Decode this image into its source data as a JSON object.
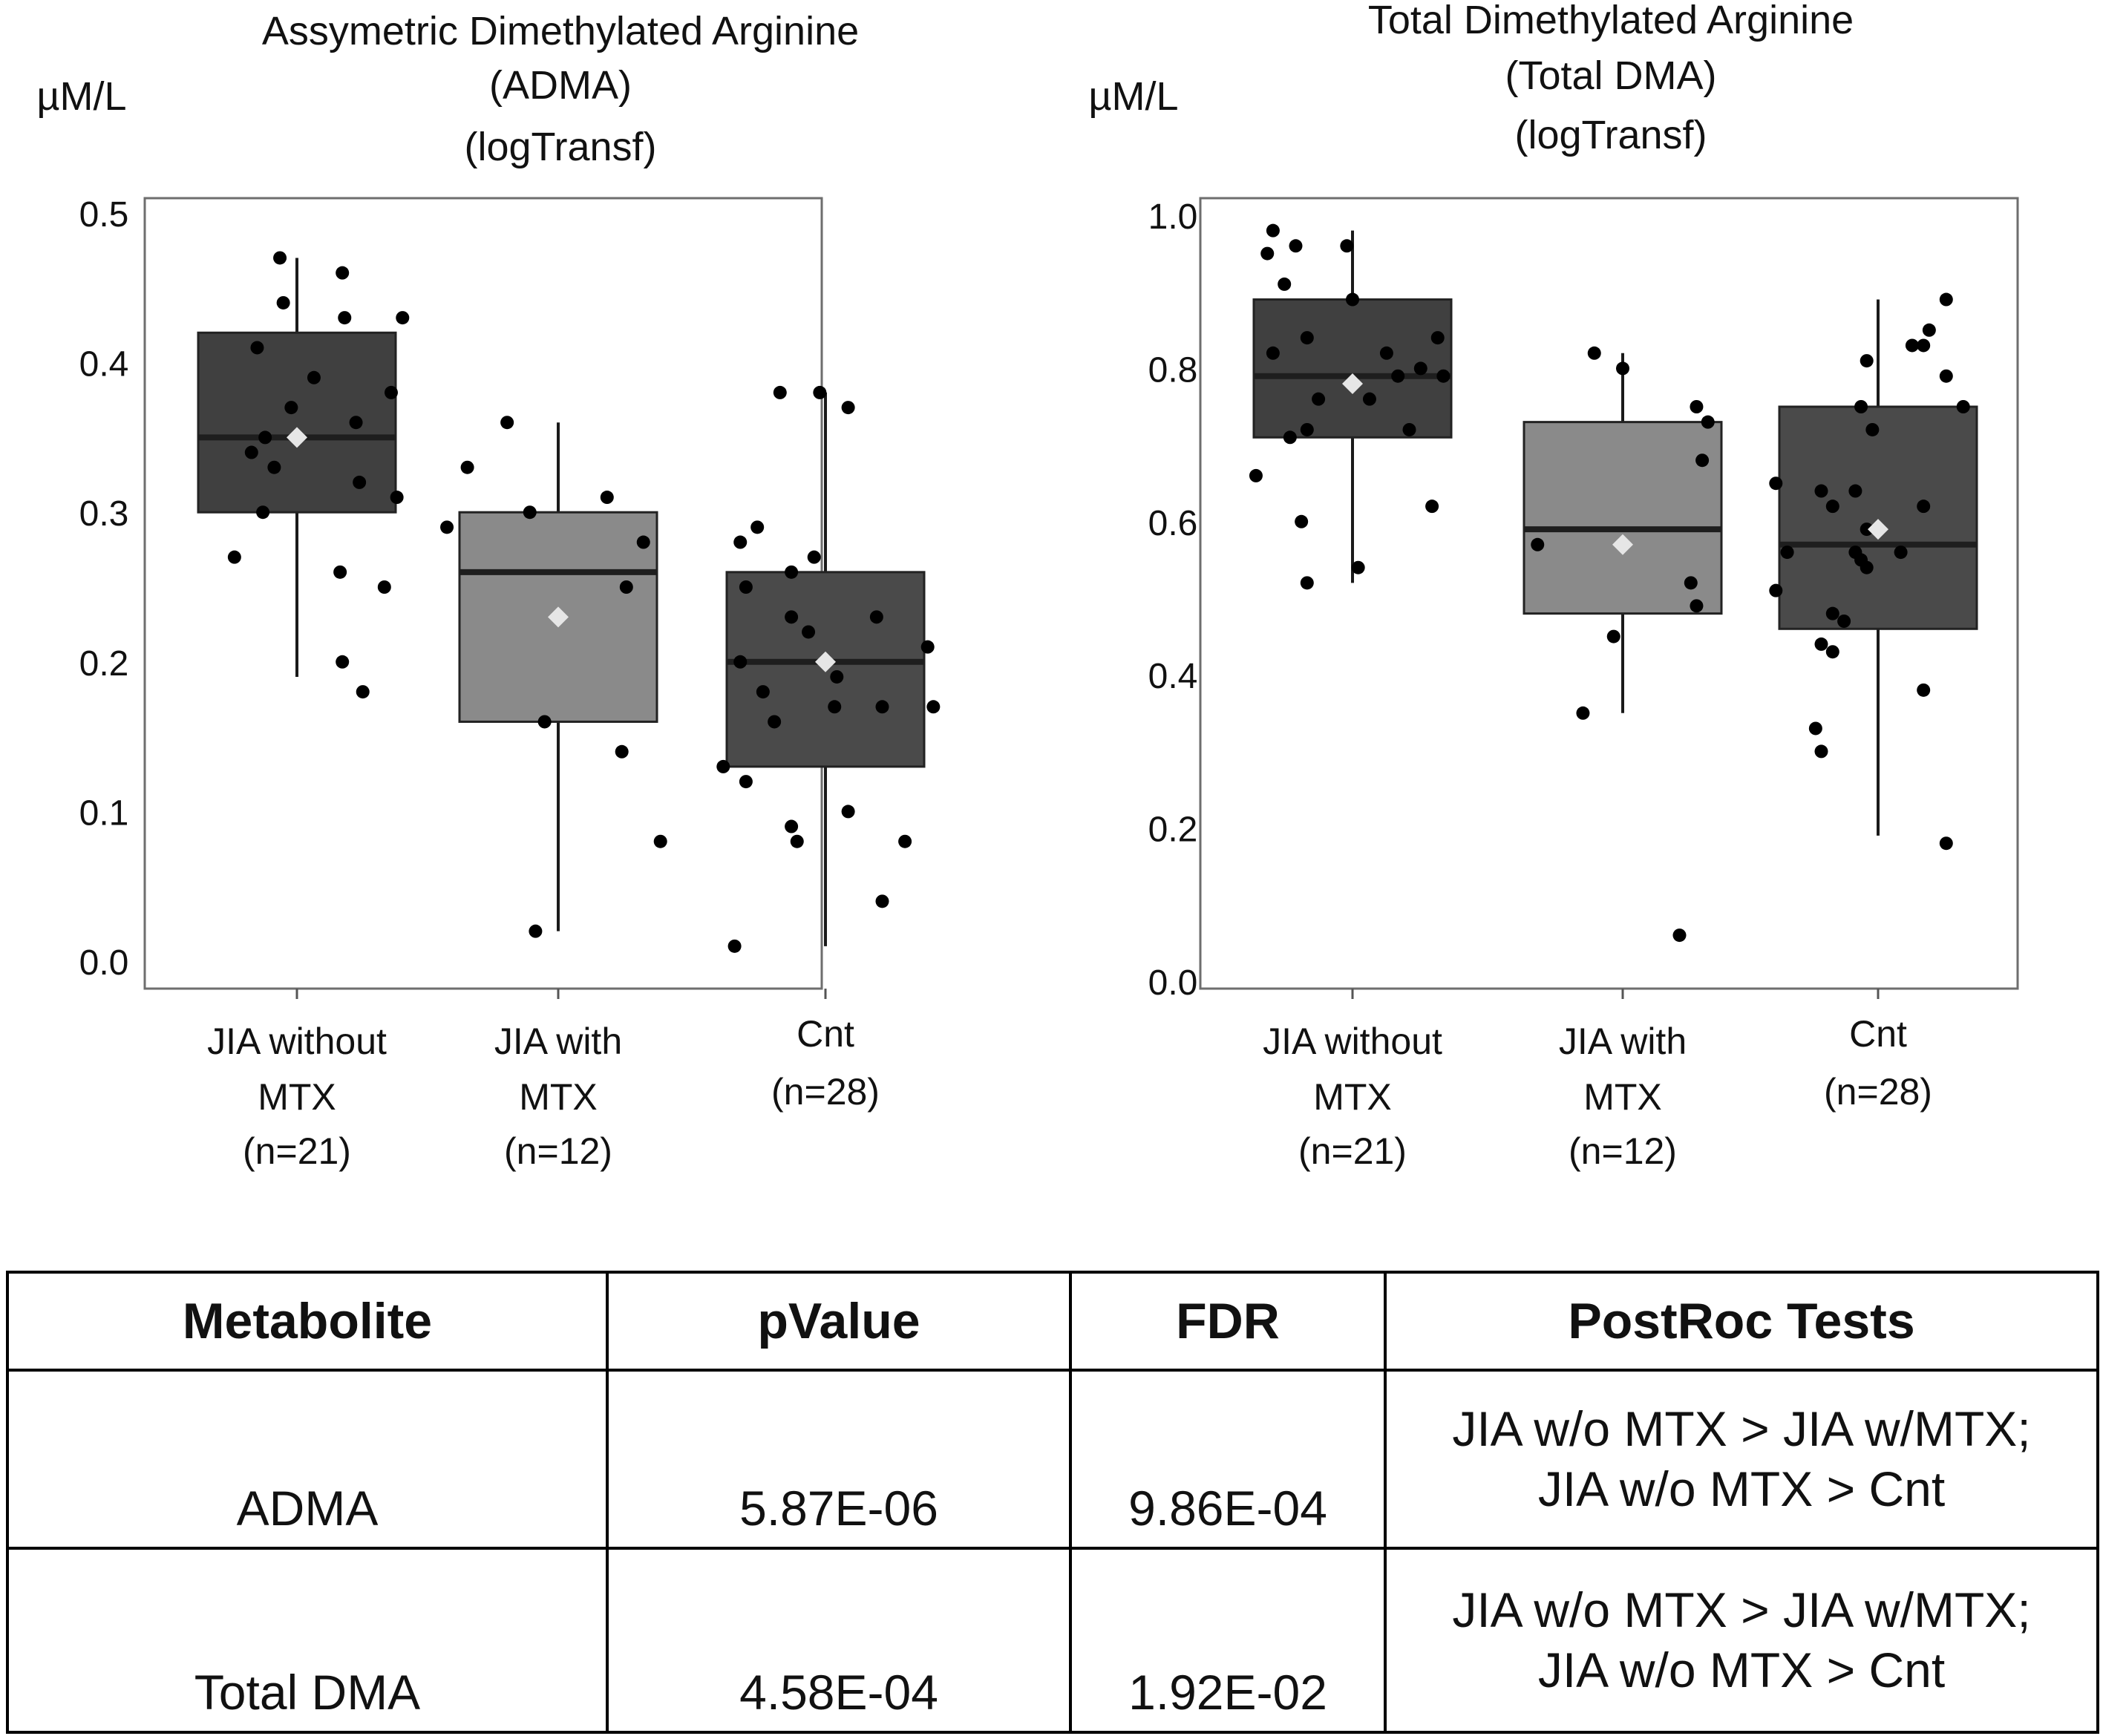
{
  "chart_data": [
    {
      "type": "box",
      "title": [
        "Assymetric Dimethylated Arginine",
        "(ADMA)",
        "(logTransf)"
      ],
      "ylabel": "µM/L",
      "ylim": [
        0,
        0.5
      ],
      "yticks": [
        "0.0",
        "0.1",
        "0.2",
        "0.3",
        "0.4",
        "0.5"
      ],
      "grid": false,
      "legend": "none",
      "groups": [
        {
          "label": [
            "JIA without",
            "MTX",
            "(n=21)"
          ],
          "fill": "#404040",
          "q1": 0.3,
          "median": 0.35,
          "q3": 0.42,
          "whisker_low": 0.19,
          "whisker_high": 0.47,
          "mean": 0.35,
          "points": [
            [
              -0.15,
              0.47
            ],
            [
              0.4,
              0.46
            ],
            [
              -0.12,
              0.44
            ],
            [
              0.42,
              0.43
            ],
            [
              0.93,
              0.43
            ],
            [
              -0.35,
              0.41
            ],
            [
              0.15,
              0.39
            ],
            [
              0.83,
              0.38
            ],
            [
              -0.05,
              0.37
            ],
            [
              0.52,
              0.36
            ],
            [
              -0.28,
              0.35
            ],
            [
              -0.4,
              0.34
            ],
            [
              -0.2,
              0.33
            ],
            [
              0.55,
              0.32
            ],
            [
              0.88,
              0.31
            ],
            [
              -0.3,
              0.3
            ],
            [
              -0.55,
              0.27
            ],
            [
              0.38,
              0.26
            ],
            [
              0.77,
              0.25
            ],
            [
              0.4,
              0.2
            ],
            [
              0.58,
              0.18
            ]
          ]
        },
        {
          "label": [
            "JIA with",
            "MTX",
            "(n=12)"
          ],
          "fill": "#8a8a8a",
          "q1": 0.16,
          "median": 0.26,
          "q3": 0.3,
          "whisker_low": 0.02,
          "whisker_high": 0.36,
          "mean": 0.23,
          "points": [
            [
              -0.45,
              0.36
            ],
            [
              -0.8,
              0.33
            ],
            [
              -0.98,
              0.29
            ],
            [
              -0.25,
              0.3
            ],
            [
              0.43,
              0.31
            ],
            [
              0.75,
              0.28
            ],
            [
              0.6,
              0.25
            ],
            [
              -0.12,
              0.16
            ],
            [
              0.56,
              0.14
            ],
            [
              0.9,
              0.08
            ],
            [
              -0.2,
              0.02
            ]
          ]
        },
        {
          "label": [
            "Cnt",
            "(n=28)"
          ],
          "fill": "#4a4a4a",
          "q1": 0.13,
          "median": 0.2,
          "q3": 0.26,
          "whisker_low": 0.01,
          "whisker_high": 0.38,
          "mean": 0.2,
          "points": [
            [
              -0.05,
              0.38
            ],
            [
              -0.4,
              0.38
            ],
            [
              0.2,
              0.37
            ],
            [
              -0.6,
              0.29
            ],
            [
              -0.75,
              0.28
            ],
            [
              -0.1,
              0.27
            ],
            [
              -0.3,
              0.26
            ],
            [
              -0.7,
              0.25
            ],
            [
              -0.3,
              0.23
            ],
            [
              0.45,
              0.23
            ],
            [
              -0.15,
              0.22
            ],
            [
              0.9,
              0.21
            ],
            [
              -0.75,
              0.2
            ],
            [
              0.1,
              0.19
            ],
            [
              -0.55,
              0.18
            ],
            [
              0.5,
              0.17
            ],
            [
              -0.45,
              0.16
            ],
            [
              0.08,
              0.17
            ],
            [
              0.95,
              0.17
            ],
            [
              -0.9,
              0.13
            ],
            [
              -0.7,
              0.12
            ],
            [
              -0.3,
              0.09
            ],
            [
              -0.25,
              0.08
            ],
            [
              0.2,
              0.1
            ],
            [
              0.7,
              0.08
            ],
            [
              0.5,
              0.04
            ],
            [
              -0.8,
              0.01
            ]
          ]
        }
      ]
    },
    {
      "type": "box",
      "title": [
        "Total Dimethylated Arginine",
        "(Total DMA)",
        "(logTransf)"
      ],
      "ylabel": "µM/L",
      "ylim": [
        0,
        1.0
      ],
      "yticks": [
        "0.0",
        "0.2",
        "0.4",
        "0.6",
        "0.8",
        "1.0"
      ],
      "grid": false,
      "legend": "none",
      "groups": [
        {
          "label": [
            "JIA without",
            "MTX",
            "(n=21)"
          ],
          "fill": "#404040",
          "q1": 0.71,
          "median": 0.79,
          "q3": 0.89,
          "whisker_low": 0.52,
          "whisker_high": 0.98,
          "mean": 0.78,
          "points": [
            [
              -0.7,
              0.98
            ],
            [
              -0.5,
              0.96
            ],
            [
              -0.05,
              0.96
            ],
            [
              -0.75,
              0.95
            ],
            [
              -0.6,
              0.91
            ],
            [
              0.0,
              0.89
            ],
            [
              -0.4,
              0.84
            ],
            [
              0.75,
              0.84
            ],
            [
              -0.7,
              0.82
            ],
            [
              0.3,
              0.82
            ],
            [
              0.6,
              0.8
            ],
            [
              -0.3,
              0.76
            ],
            [
              0.15,
              0.76
            ],
            [
              0.4,
              0.79
            ],
            [
              0.8,
              0.79
            ],
            [
              -0.4,
              0.72
            ],
            [
              -0.55,
              0.71
            ],
            [
              0.5,
              0.72
            ],
            [
              -0.85,
              0.66
            ],
            [
              0.7,
              0.62
            ],
            [
              -0.45,
              0.6
            ],
            [
              0.05,
              0.54
            ],
            [
              -0.4,
              0.52
            ]
          ]
        },
        {
          "label": [
            "JIA with",
            "MTX",
            "(n=12)"
          ],
          "fill": "#8a8a8a",
          "q1": 0.48,
          "median": 0.59,
          "q3": 0.73,
          "whisker_low": 0.35,
          "whisker_high": 0.82,
          "mean": 0.57,
          "points": [
            [
              -0.25,
              0.82
            ],
            [
              0.0,
              0.8
            ],
            [
              0.65,
              0.75
            ],
            [
              0.75,
              0.73
            ],
            [
              0.7,
              0.68
            ],
            [
              -0.75,
              0.57
            ],
            [
              0.6,
              0.52
            ],
            [
              0.65,
              0.49
            ],
            [
              -0.08,
              0.45
            ],
            [
              -0.35,
              0.35
            ],
            [
              0.5,
              0.06
            ]
          ]
        },
        {
          "label": [
            "Cnt",
            "(n=28)"
          ],
          "fill": "#4a4a4a",
          "q1": 0.46,
          "median": 0.57,
          "q3": 0.75,
          "whisker_low": 0.19,
          "whisker_high": 0.89,
          "mean": 0.59,
          "points": [
            [
              0.6,
              0.89
            ],
            [
              0.45,
              0.85
            ],
            [
              0.3,
              0.83
            ],
            [
              0.4,
              0.83
            ],
            [
              -0.1,
              0.81
            ],
            [
              0.6,
              0.79
            ],
            [
              -0.15,
              0.75
            ],
            [
              0.75,
              0.75
            ],
            [
              -0.05,
              0.72
            ],
            [
              -0.9,
              0.65
            ],
            [
              -0.5,
              0.64
            ],
            [
              -0.2,
              0.64
            ],
            [
              0.4,
              0.62
            ],
            [
              -0.4,
              0.62
            ],
            [
              -0.1,
              0.59
            ],
            [
              -0.8,
              0.56
            ],
            [
              -0.2,
              0.56
            ],
            [
              0.2,
              0.56
            ],
            [
              -0.1,
              0.54
            ],
            [
              -0.15,
              0.55
            ],
            [
              -0.9,
              0.51
            ],
            [
              -0.4,
              0.48
            ],
            [
              -0.3,
              0.47
            ],
            [
              -0.5,
              0.44
            ],
            [
              -0.4,
              0.43
            ],
            [
              0.4,
              0.38
            ],
            [
              -0.55,
              0.33
            ],
            [
              -0.5,
              0.3
            ],
            [
              0.6,
              0.18
            ]
          ]
        }
      ]
    }
  ],
  "table": {
    "headers": [
      "Metabolite",
      "pValue",
      "FDR",
      "PostRoc Tests"
    ],
    "rows": [
      {
        "metabolite": "ADMA",
        "pvalue": "5.87E-06",
        "fdr": "9.86E-04",
        "post": [
          "JIA w/o MTX > JIA w/MTX;",
          "JIA w/o MTX > Cnt"
        ]
      },
      {
        "metabolite": "Total DMA",
        "pvalue": "4.58E-04",
        "fdr": "1.92E-02",
        "post": [
          "JIA w/o MTX  > JIA w/MTX;",
          "JIA w/o MTX  > Cnt"
        ]
      }
    ]
  },
  "colors": {
    "box_dark": "#404040",
    "box_light": "#8a8a8a",
    "point": "#000000",
    "mean_marker": "#e6e6e6",
    "line": "#1a1a1a"
  }
}
